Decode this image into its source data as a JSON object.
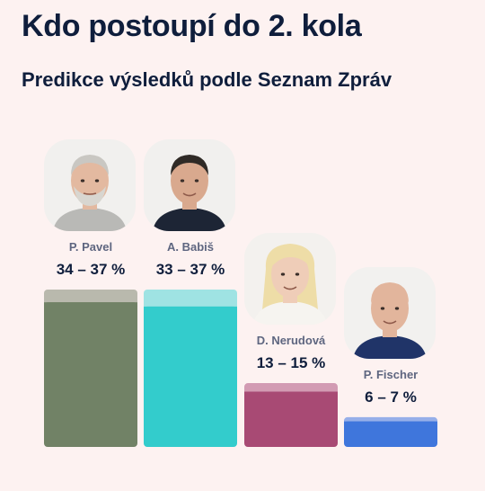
{
  "header": {
    "title": "Kdo postoupí do 2. kola",
    "subtitle": "Predikce výsledků podle Seznam Zpráv"
  },
  "chart_data": {
    "type": "bar",
    "title": "Kdo postoupí do 2. kola",
    "subtitle": "Predikce výsledků podle Seznam Zpráv",
    "categories": [
      "P. Pavel",
      "A. Babiš",
      "D. Nerudová",
      "P. Fischer"
    ],
    "range_labels": [
      "34 – 37 %",
      "33 – 37 %",
      "13 – 15 %",
      "6 – 7 %"
    ],
    "low": [
      34,
      33,
      13,
      6
    ],
    "high": [
      37,
      37,
      15,
      7
    ],
    "colors": [
      "#718266",
      "#33cccc",
      "#a84a74",
      "#3f76dc"
    ],
    "range_colors": [
      "#b9b9ad",
      "#9fe3e3",
      "#d29bb3",
      "#96afe9"
    ],
    "avatar_icons": [
      "portrait-pavel-icon",
      "portrait-babis-icon",
      "portrait-nerudova-icon",
      "portrait-fischer-icon"
    ],
    "ylim": [
      0,
      37
    ]
  }
}
